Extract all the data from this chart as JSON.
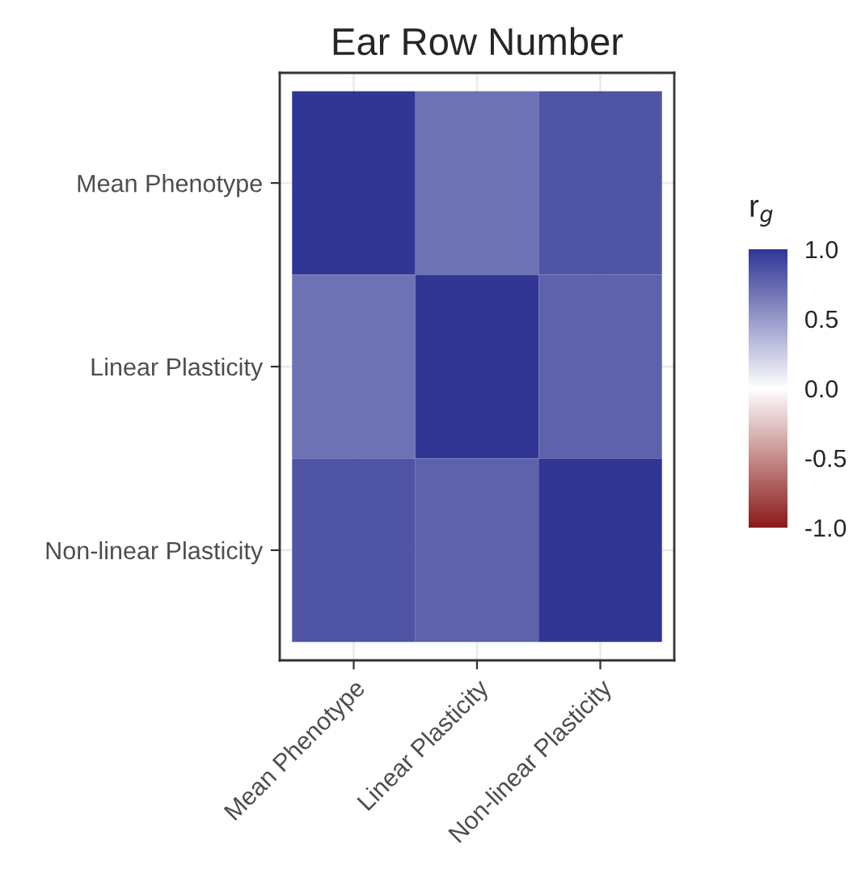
{
  "chart_data": {
    "type": "heatmap",
    "title": "Ear Row Number",
    "categories": [
      "Mean Phenotype",
      "Linear Plasticity",
      "Non-linear Plasticity"
    ],
    "y_categories": [
      "Mean Phenotype",
      "Linear Plasticity",
      "Non-linear Plasticity"
    ],
    "cells": [
      [
        1.0,
        0.7,
        0.85
      ],
      [
        0.7,
        1.0,
        0.78
      ],
      [
        0.85,
        0.78,
        1.0
      ]
    ],
    "clabel": "r$_{g}$",
    "clim": [
      -1.0,
      1.0
    ],
    "cticks": [
      {
        "value": -1.0,
        "label": "-1.0"
      },
      {
        "value": -0.5,
        "label": "-0.5"
      },
      {
        "value": 0.0,
        "label": "0.0"
      },
      {
        "value": 0.5,
        "label": "0.5"
      },
      {
        "value": 1.0,
        "label": "1.0"
      }
    ],
    "colors": [
      "#8b1a1a",
      "#ffffff",
      "#313695"
    ],
    "grid": true
  }
}
